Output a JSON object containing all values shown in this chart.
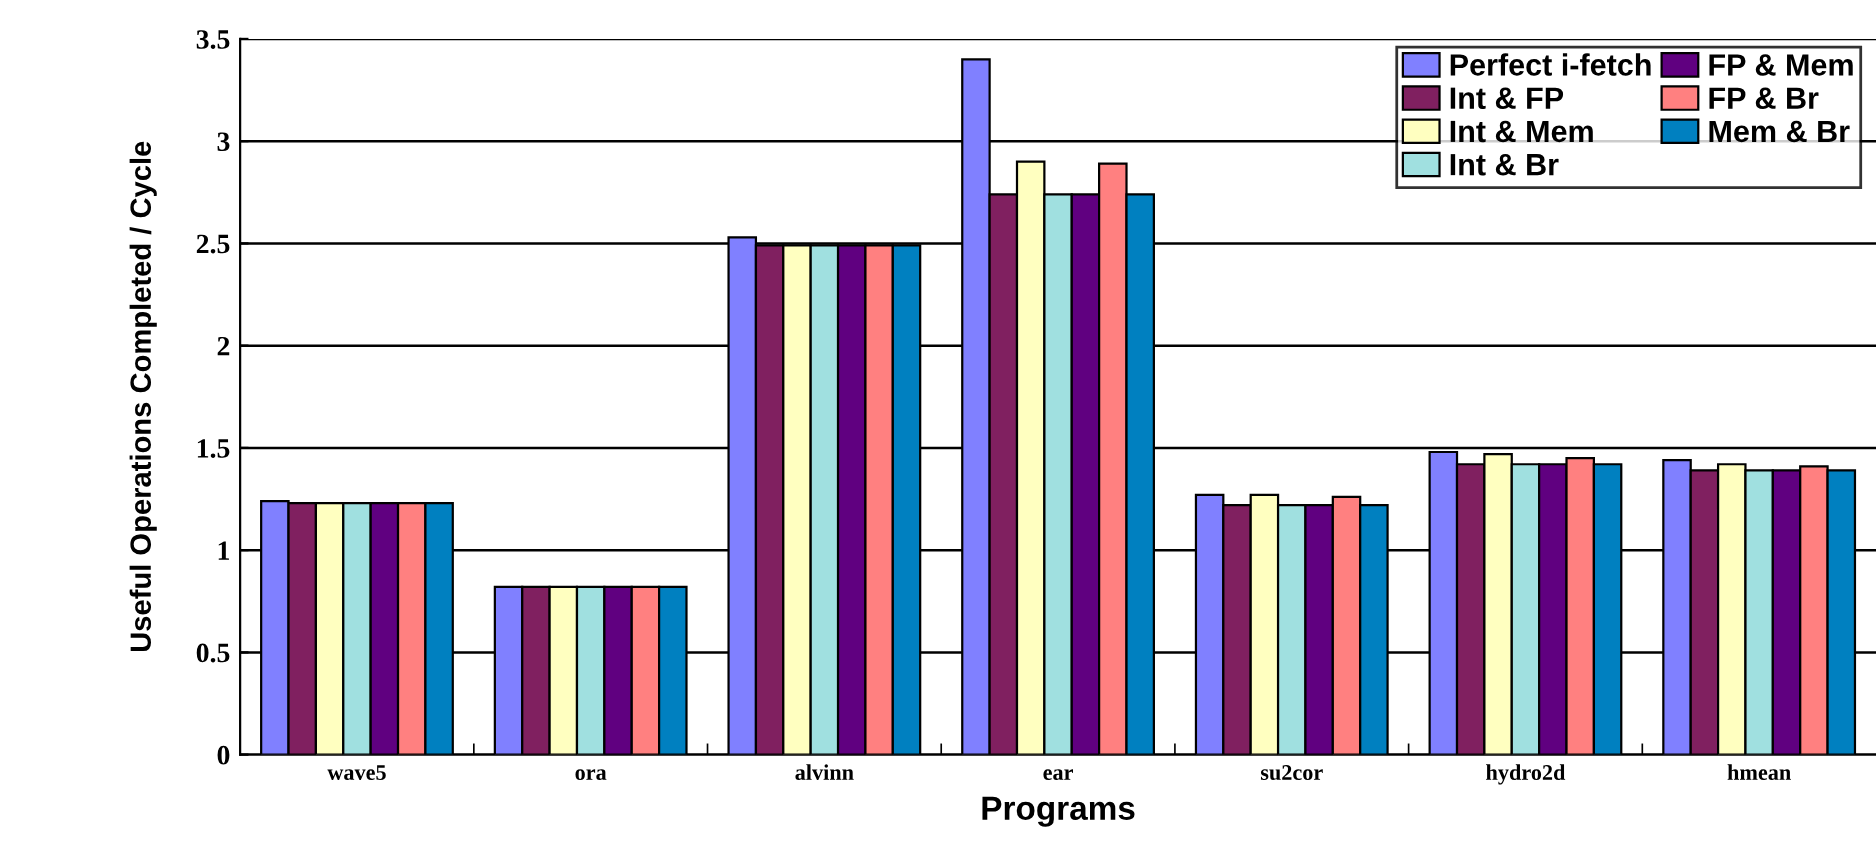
{
  "chart_data": {
    "type": "bar",
    "xlabel": "Programs",
    "ylabel": "Useful Operations Completed / Cycle",
    "categories": [
      "wave5",
      "ora",
      "alvinn",
      "ear",
      "su2cor",
      "hydro2d",
      "hmean"
    ],
    "ylim": [
      0,
      3.5
    ],
    "yticks": [
      0,
      0.5,
      1,
      1.5,
      2,
      2.5,
      3,
      3.5
    ],
    "grid": "y",
    "legend": "top right",
    "series": [
      {
        "name": "Perfect i-fetch",
        "color": "#8080ff",
        "values": [
          1.24,
          0.82,
          2.53,
          3.4,
          1.27,
          1.48,
          1.44
        ]
      },
      {
        "name": "Int & FP",
        "color": "#802060",
        "values": [
          1.23,
          0.82,
          2.49,
          2.74,
          1.22,
          1.42,
          1.39
        ]
      },
      {
        "name": "Int & Mem",
        "color": "#ffffc0",
        "values": [
          1.23,
          0.82,
          2.49,
          2.9,
          1.27,
          1.47,
          1.42
        ]
      },
      {
        "name": "Int & Br",
        "color": "#a0e0e0",
        "values": [
          1.23,
          0.82,
          2.49,
          2.74,
          1.22,
          1.42,
          1.39
        ]
      },
      {
        "name": "FP & Mem",
        "color": "#600080",
        "values": [
          1.23,
          0.82,
          2.49,
          2.74,
          1.22,
          1.42,
          1.39
        ]
      },
      {
        "name": "FP & Br",
        "color": "#ff8080",
        "values": [
          1.23,
          0.82,
          2.49,
          2.89,
          1.26,
          1.45,
          1.41
        ]
      },
      {
        "name": "Mem & Br",
        "color": "#0080c0",
        "values": [
          1.23,
          0.82,
          2.49,
          2.74,
          1.22,
          1.42,
          1.39
        ]
      }
    ]
  }
}
